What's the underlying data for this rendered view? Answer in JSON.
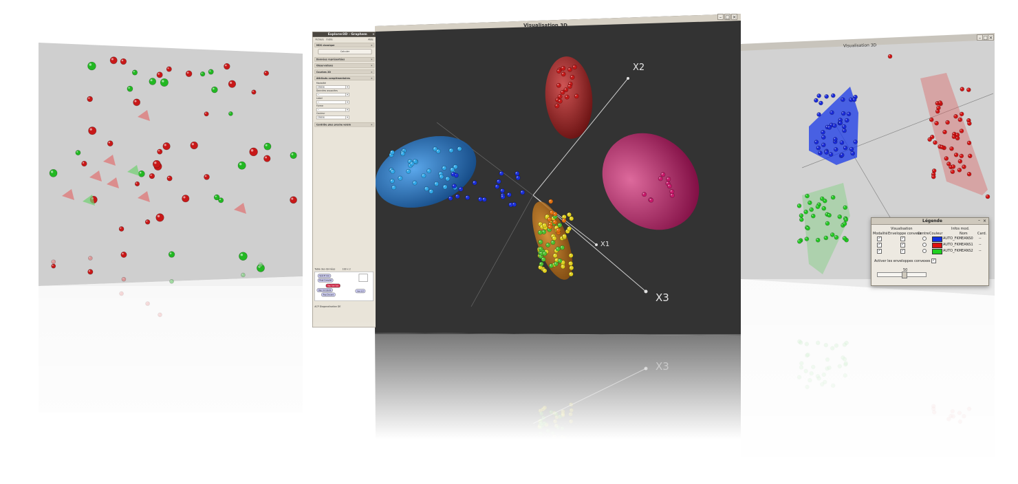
{
  "left_window": {
    "description_colors": {
      "red": "#cc1f1f",
      "green": "#2fbf2f",
      "background": "#cfcfcf"
    }
  },
  "explorer_window": {
    "title": "Explorer3D - Graphem",
    "menu": [
      "Fichiers",
      "Outils",
      "Aide"
    ],
    "sections": {
      "mds": "MDS classique",
      "compute_button": "Calculer",
      "donnees": "Données représentées",
      "observations": "Observations",
      "courbes": "Courbes 2D",
      "attributs": "Attributs complémentaires",
      "controle": "Contrôle plus proche voisin"
    },
    "fields": {
      "modalite_label": "Modalité",
      "modalite_value": "classe",
      "donnees_associees_label": "Données associées",
      "donnees_associees_value": "--",
      "label_label": "Label",
      "label_value": "--",
      "forme_label": "Forme",
      "forme_value": "--",
      "couleur_label": "Couleur",
      "couleur_value": "classe"
    },
    "table": {
      "title": "Table des données",
      "size": "100 x 2",
      "nodes": [
        "Spécifi Axe",
        "Rept Complet",
        "Rep Axe Vall",
        "Rep Complete",
        "Rep Discard",
        "Axe 1/2"
      ],
      "footer": "ACP Diagonalisation DE"
    }
  },
  "center_window": {
    "title": "Visualisation 3D",
    "axes": {
      "x1": "X1",
      "x2": "X2",
      "x3": "X3"
    },
    "colors": {
      "background": "#333333",
      "blue_cluster": "#1d73c9",
      "red_cluster": "#b21e1e",
      "magenta_cluster": "#c0186a",
      "orange_cluster": "#d27a10"
    }
  },
  "right_window": {
    "title": "Visualisation 3D",
    "legend": {
      "title": "Légende",
      "group_visualisation": "Visualisation",
      "group_infos": "Infos mod.",
      "col_modalite": "Modalité",
      "col_enveloppe": "Enveloppe convexe",
      "col_centre": "Centre",
      "col_couleur": "Couleur",
      "col_nom": "Nom",
      "col_card": "Card.",
      "rows": [
        {
          "name": "AUTO_FKMEANS0",
          "color": "#1030e0",
          "card": "--"
        },
        {
          "name": "AUTO_FKMEANS1",
          "color": "#e01010",
          "card": "--"
        },
        {
          "name": "AUTO_FKMEANS2",
          "color": "#20d020",
          "card": "--"
        }
      ],
      "activate_label": "Activer les enveloppes convexes",
      "slider_value": "50"
    }
  }
}
